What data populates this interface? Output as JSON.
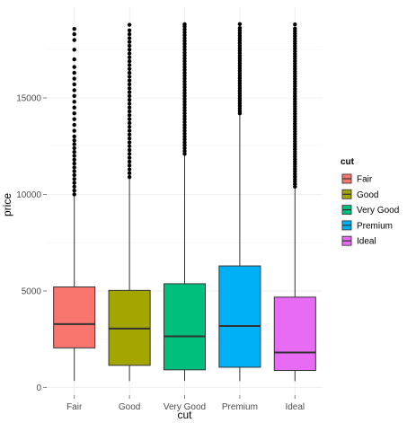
{
  "chart_data": {
    "type": "boxplot",
    "xlabel": "cut",
    "ylabel": "price",
    "categories": [
      "Fair",
      "Good",
      "Very Good",
      "Premium",
      "Ideal"
    ],
    "colors": [
      "#F8766D",
      "#A3A500",
      "#00BF7D",
      "#00B0F6",
      "#E76BF3"
    ],
    "ylim": [
      -400,
      19700
    ],
    "yticks": [
      0,
      5000,
      10000,
      15000
    ],
    "ytick_labels": [
      "0",
      "5000",
      "10000",
      "15000"
    ],
    "grid": true,
    "legend": {
      "title": "cut",
      "placement": "right",
      "items": [
        "Fair",
        "Good",
        "Very Good",
        "Premium",
        "Ideal"
      ]
    },
    "boxes": [
      {
        "name": "Fair",
        "whisker_low": 337,
        "q1": 2050,
        "median": 3282,
        "q3": 5206,
        "whisker_high": 9950,
        "outliers": [
          10000,
          10200,
          10400,
          10600,
          10800,
          11000,
          11200,
          11400,
          11600,
          11800,
          12000,
          12200,
          12400,
          12600,
          12800,
          13000,
          13300,
          13600,
          13900,
          14200,
          14500,
          14800,
          15100,
          15400,
          15700,
          16000,
          16300,
          16600,
          17000,
          17500,
          18000,
          18300,
          18574
        ]
      },
      {
        "name": "Good",
        "whisker_low": 327,
        "q1": 1145,
        "median": 3050,
        "q3": 5028,
        "whisker_high": 10850,
        "outliers": [
          10900,
          11100,
          11300,
          11500,
          11700,
          11900,
          12100,
          12300,
          12500,
          12700,
          12900,
          13100,
          13300,
          13500,
          13700,
          13900,
          14100,
          14300,
          14500,
          14700,
          14900,
          15100,
          15300,
          15500,
          15700,
          15900,
          16100,
          16300,
          16500,
          16700,
          16900,
          17100,
          17300,
          17500,
          17700,
          17900,
          18100,
          18300,
          18500,
          18788
        ]
      },
      {
        "name": "Very Good",
        "whisker_low": 336,
        "q1": 912,
        "median": 2648,
        "q3": 5373,
        "whisker_high": 12050,
        "outliers": [
          12100,
          12250,
          12400,
          12550,
          12700,
          12850,
          13000,
          13150,
          13300,
          13450,
          13600,
          13750,
          13900,
          14050,
          14200,
          14350,
          14500,
          14650,
          14800,
          14950,
          15100,
          15250,
          15400,
          15550,
          15700,
          15850,
          16000,
          16150,
          16300,
          16450,
          16600,
          16750,
          16900,
          17050,
          17200,
          17350,
          17500,
          17650,
          17800,
          17950,
          18100,
          18250,
          18400,
          18550,
          18700,
          18818
        ]
      },
      {
        "name": "Premium",
        "whisker_low": 326,
        "q1": 1046,
        "median": 3185,
        "q3": 6296,
        "whisker_high": 14150,
        "outliers": [
          14200,
          14330,
          14460,
          14590,
          14720,
          14850,
          14980,
          15110,
          15240,
          15370,
          15500,
          15630,
          15760,
          15890,
          16020,
          16150,
          16280,
          16410,
          16540,
          16670,
          16800,
          16930,
          17060,
          17190,
          17320,
          17450,
          17580,
          17710,
          17840,
          17970,
          18100,
          18230,
          18360,
          18490,
          18620,
          18823
        ]
      },
      {
        "name": "Ideal",
        "whisker_low": 326,
        "q1": 878,
        "median": 1810,
        "q3": 4678,
        "whisker_high": 10350,
        "outliers": [
          10400,
          10530,
          10660,
          10790,
          10920,
          11050,
          11180,
          11310,
          11440,
          11570,
          11700,
          11830,
          11960,
          12090,
          12220,
          12350,
          12480,
          12610,
          12740,
          12870,
          13000,
          13130,
          13260,
          13390,
          13520,
          13650,
          13780,
          13910,
          14040,
          14170,
          14300,
          14430,
          14560,
          14690,
          14820,
          14950,
          15080,
          15210,
          15340,
          15470,
          15600,
          15730,
          15860,
          15990,
          16120,
          16250,
          16380,
          16510,
          16640,
          16770,
          16900,
          17030,
          17160,
          17290,
          17420,
          17550,
          17680,
          17810,
          17940,
          18070,
          18200,
          18330,
          18460,
          18590,
          18806
        ]
      }
    ]
  }
}
